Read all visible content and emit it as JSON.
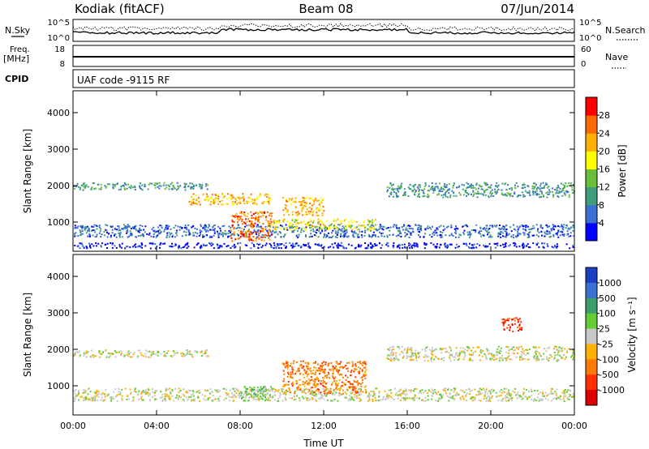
{
  "header": {
    "station": "Kodiak (fitACF)",
    "beam": "Beam 08",
    "date": "07/Jun/2014"
  },
  "nsky_panel": {
    "left_label": "N.Sky",
    "right_label": "N.Search",
    "left_ticks": [
      "10^5",
      "10^0"
    ],
    "right_ticks": [
      "10^5",
      "10^0"
    ]
  },
  "freq_panel": {
    "left_label_1": "Freq.",
    "left_label_2": "[MHz]",
    "right_label": "Nave",
    "left_ticks": [
      "18",
      "8"
    ],
    "right_ticks": [
      "60",
      "0"
    ]
  },
  "cpid_panel": {
    "label": "CPID",
    "text": "UAF code -9115 RF"
  },
  "chart_data": [
    {
      "type": "heatmap",
      "name": "power",
      "ylabel": "Slant Range [km]",
      "yticks": [
        1000,
        2000,
        3000,
        4000
      ],
      "ylim": [
        200,
        4600
      ],
      "colorbar_label": "Power [dB]",
      "colorbar_ticks": [
        4,
        8,
        12,
        16,
        20,
        24,
        28
      ],
      "colorbar_colors": [
        "#0000ff",
        "#3a6fcf",
        "#3f9c7c",
        "#6abf3a",
        "#ffff00",
        "#ffb000",
        "#ff6a00",
        "#ff0000"
      ],
      "bands": [
        {
          "x": [
            0.0,
            24.0
          ],
          "y": [
            300,
            450
          ],
          "level": 0
        },
        {
          "x": [
            0.0,
            24.0
          ],
          "y": [
            600,
            950
          ],
          "level": 1
        },
        {
          "x": [
            0.0,
            6.5
          ],
          "y": [
            1900,
            2100
          ],
          "level": 2
        },
        {
          "x": [
            5.5,
            9.5
          ],
          "y": [
            1500,
            1800
          ],
          "level": 5
        },
        {
          "x": [
            7.5,
            9.5
          ],
          "y": [
            500,
            1300
          ],
          "level": 6
        },
        {
          "x": [
            9.5,
            14.5
          ],
          "y": [
            800,
            1100
          ],
          "level": 4
        },
        {
          "x": [
            10.0,
            12.0
          ],
          "y": [
            1200,
            1700
          ],
          "level": 5
        },
        {
          "x": [
            15.0,
            24.0
          ],
          "y": [
            1700,
            2100
          ],
          "level": 2
        }
      ]
    },
    {
      "type": "heatmap",
      "name": "velocity",
      "xlabel": "Time UT",
      "xticks": [
        "00:00",
        "04:00",
        "08:00",
        "12:00",
        "16:00",
        "20:00",
        "00:00"
      ],
      "xlim": [
        0,
        24
      ],
      "ylabel": "Slant Range [km]",
      "yticks": [
        1000,
        2000,
        3000,
        4000
      ],
      "ylim": [
        200,
        4600
      ],
      "colorbar_label": "Velocity [m s⁻¹]",
      "colorbar_ticks": [
        "1000",
        "500",
        "100",
        "25",
        "-25",
        "-100",
        "-500",
        "-1000"
      ],
      "colorbar_colors": [
        "#1a3fc0",
        "#3a70cf",
        "#3f9c6c",
        "#66cc33",
        "#c8c8c8",
        "#ffb000",
        "#ff7a00",
        "#ff3000",
        "#dd0000"
      ],
      "bands": [
        {
          "x": [
            0.0,
            24.0
          ],
          "y": [
            600,
            950
          ],
          "level": 4
        },
        {
          "x": [
            0.0,
            6.5
          ],
          "y": [
            1800,
            2000
          ],
          "level": 4
        },
        {
          "x": [
            8.0,
            9.5
          ],
          "y": [
            600,
            1000
          ],
          "level": 3
        },
        {
          "x": [
            10.0,
            14.0
          ],
          "y": [
            800,
            1700
          ],
          "level": 6
        },
        {
          "x": [
            15.0,
            24.0
          ],
          "y": [
            1700,
            2100
          ],
          "level": 4
        },
        {
          "x": [
            20.5,
            21.5
          ],
          "y": [
            2500,
            2900
          ],
          "level": 7
        }
      ]
    }
  ]
}
